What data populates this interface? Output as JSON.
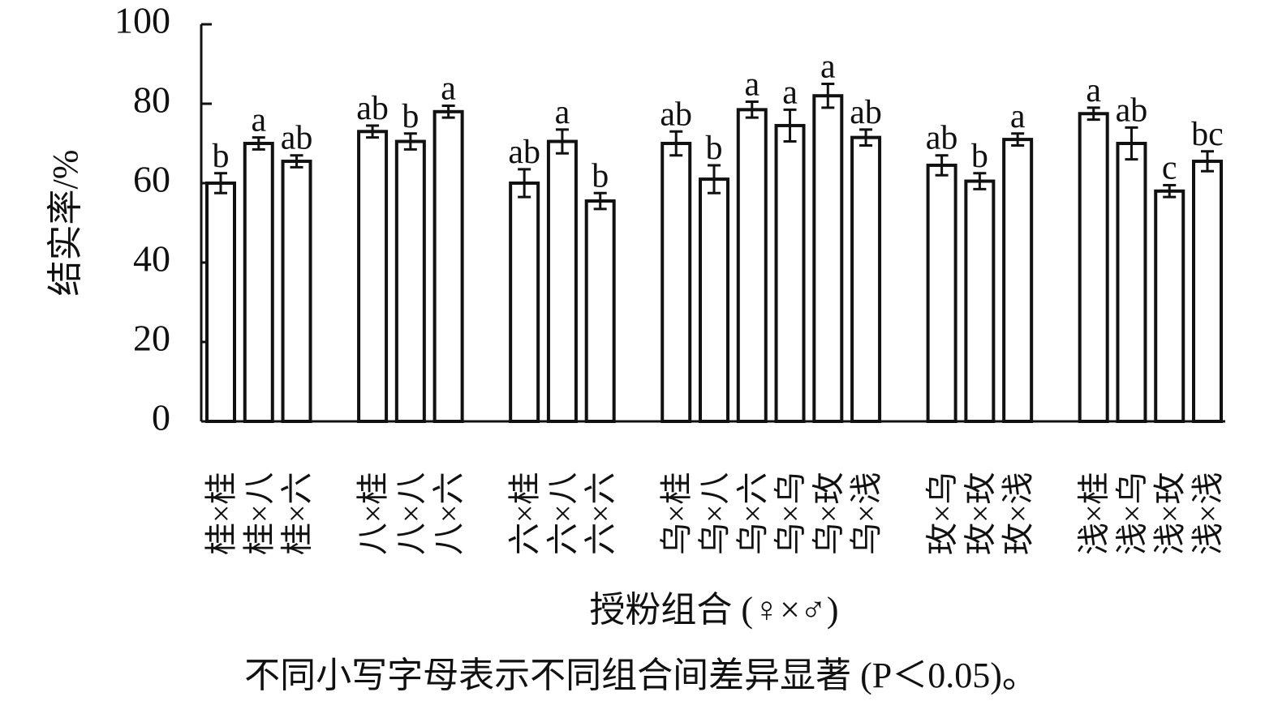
{
  "chart_data": {
    "type": "bar",
    "y_label": "结实率/%",
    "x_label": "授粉组合 (♀×♂)",
    "note": "不同小写字母表示不同组合间差异显著 (P＜0.05)。",
    "categories": [
      "桂×桂",
      "桂×八",
      "桂×六",
      null,
      "八×桂",
      "八×八",
      "八×六",
      null,
      "六×桂",
      "六×八",
      "六×六",
      null,
      "乌×桂",
      "乌×八",
      "乌×六",
      "乌×乌",
      "乌×玫",
      "乌×浅",
      null,
      "玫×乌",
      "玫×玫",
      "玫×浅",
      null,
      "浅×桂",
      "浅×乌",
      "浅×玫",
      "浅×浅"
    ],
    "values": [
      60,
      70,
      65.5,
      null,
      73,
      70.5,
      78,
      null,
      60,
      70.5,
      55.5,
      null,
      70,
      61,
      78.5,
      74.5,
      82,
      71.5,
      null,
      64.5,
      60.5,
      71,
      null,
      77.5,
      70,
      58,
      65.5
    ],
    "errors": [
      2.5,
      1.5,
      1.5,
      null,
      1.5,
      2,
      1.5,
      null,
      3.5,
      3,
      2,
      null,
      3,
      3.5,
      2,
      4,
      3,
      2,
      null,
      2.5,
      2,
      1.5,
      null,
      1.5,
      4,
      1.5,
      2.5
    ],
    "letters": [
      "b",
      "a",
      "ab",
      null,
      "ab",
      "b",
      "a",
      null,
      "ab",
      "a",
      "b",
      null,
      "ab",
      "b",
      "a",
      "a",
      "a",
      "ab",
      null,
      "ab",
      "b",
      "a",
      null,
      "a",
      "ab",
      "c",
      "bc"
    ],
    "color": "#ffffff",
    "ylim": [
      0,
      100
    ],
    "yticks": [
      0,
      20,
      40,
      60,
      80,
      100
    ]
  }
}
